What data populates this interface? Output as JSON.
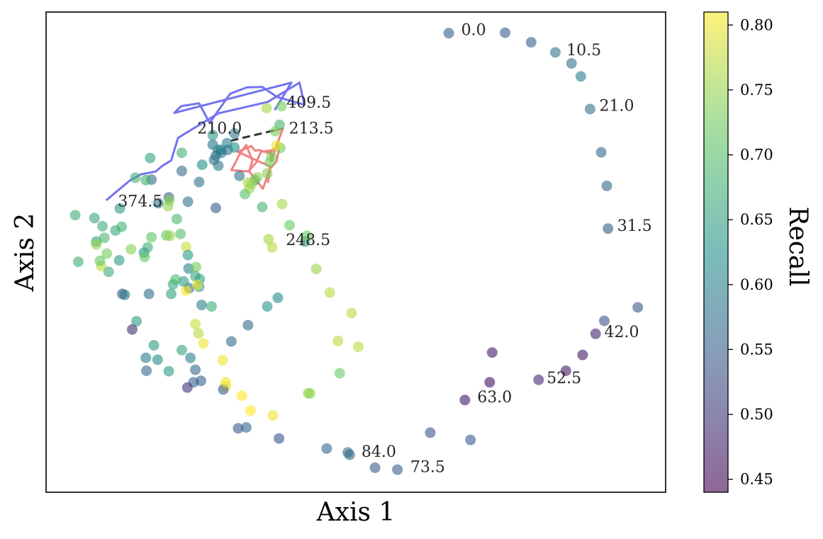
{
  "chart_data": {
    "type": "scatter",
    "xlabel": "Axis 1",
    "ylabel": "Axis 2",
    "xlim": [
      0,
      100
    ],
    "ylim": [
      0,
      100
    ],
    "colorbar": {
      "label": "Recall",
      "min": 0.44,
      "max": 0.81,
      "ticks": [
        0.45,
        0.5,
        0.55,
        0.6,
        0.65,
        0.7,
        0.75,
        0.8
      ],
      "tick_labels": [
        "0.45",
        "0.50",
        "0.55",
        "0.60",
        "0.65",
        "0.70",
        "0.75",
        "0.80"
      ]
    },
    "points": [
      {
        "x": 65.0,
        "y": 95.6,
        "v": 0.55
      },
      {
        "x": 74.1,
        "y": 95.7,
        "v": 0.55
      },
      {
        "x": 78.3,
        "y": 93.7,
        "v": 0.55
      },
      {
        "x": 82.2,
        "y": 91.6,
        "v": 0.58
      },
      {
        "x": 84.8,
        "y": 89.3,
        "v": 0.58
      },
      {
        "x": 86.3,
        "y": 86.6,
        "v": 0.59
      },
      {
        "x": 87.8,
        "y": 79.8,
        "v": 0.58
      },
      {
        "x": 89.6,
        "y": 70.8,
        "v": 0.56
      },
      {
        "x": 90.5,
        "y": 63.8,
        "v": 0.56
      },
      {
        "x": 90.7,
        "y": 54.9,
        "v": 0.55
      },
      {
        "x": 95.5,
        "y": 38.5,
        "v": 0.54
      },
      {
        "x": 90.1,
        "y": 35.7,
        "v": 0.53
      },
      {
        "x": 88.7,
        "y": 33.0,
        "v": 0.48
      },
      {
        "x": 86.6,
        "y": 28.6,
        "v": 0.47
      },
      {
        "x": 83.9,
        "y": 25.3,
        "v": 0.47
      },
      {
        "x": 79.5,
        "y": 23.4,
        "v": 0.48
      },
      {
        "x": 72.0,
        "y": 29.1,
        "v": 0.47
      },
      {
        "x": 71.6,
        "y": 22.9,
        "v": 0.46
      },
      {
        "x": 67.6,
        "y": 19.2,
        "v": 0.47
      },
      {
        "x": 68.5,
        "y": 10.9,
        "v": 0.54
      },
      {
        "x": 62.0,
        "y": 12.4,
        "v": 0.54
      },
      {
        "x": 56.7,
        "y": 4.7,
        "v": 0.55
      },
      {
        "x": 53.1,
        "y": 5.1,
        "v": 0.55
      },
      {
        "x": 49.0,
        "y": 7.8,
        "v": 0.56
      },
      {
        "x": 48.7,
        "y": 8.3,
        "v": 0.57
      },
      {
        "x": 45.3,
        "y": 9.1,
        "v": 0.56
      },
      {
        "x": 37.6,
        "y": 11.2,
        "v": 0.54
      },
      {
        "x": 32.3,
        "y": 13.5,
        "v": 0.56
      },
      {
        "x": 31.0,
        "y": 13.3,
        "v": 0.55
      },
      {
        "x": 36.6,
        "y": 16.0,
        "v": 0.8
      },
      {
        "x": 33.0,
        "y": 17.0,
        "v": 0.81
      },
      {
        "x": 31.6,
        "y": 20.1,
        "v": 0.81
      },
      {
        "x": 29.0,
        "y": 22.1,
        "v": 0.8
      },
      {
        "x": 28.6,
        "y": 21.4,
        "v": 0.55
      },
      {
        "x": 42.6,
        "y": 20.6,
        "v": 0.74
      },
      {
        "x": 42.3,
        "y": 20.6,
        "v": 0.75
      },
      {
        "x": 47.4,
        "y": 24.8,
        "v": 0.72
      },
      {
        "x": 50.4,
        "y": 30.3,
        "v": 0.77
      },
      {
        "x": 47.1,
        "y": 31.5,
        "v": 0.77
      },
      {
        "x": 49.3,
        "y": 37.3,
        "v": 0.77
      },
      {
        "x": 45.8,
        "y": 41.6,
        "v": 0.77
      },
      {
        "x": 43.6,
        "y": 46.5,
        "v": 0.75
      },
      {
        "x": 41.8,
        "y": 52.2,
        "v": 0.64
      },
      {
        "x": 42.1,
        "y": 53.4,
        "v": 0.72
      },
      {
        "x": 39.3,
        "y": 55.6,
        "v": 0.72
      },
      {
        "x": 35.9,
        "y": 52.7,
        "v": 0.76
      },
      {
        "x": 38.1,
        "y": 60.0,
        "v": 0.76
      },
      {
        "x": 36.5,
        "y": 51.0,
        "v": 0.77
      },
      {
        "x": 35.7,
        "y": 66.4,
        "v": 0.74
      },
      {
        "x": 37.8,
        "y": 71.7,
        "v": 0.73
      },
      {
        "x": 36.4,
        "y": 69.9,
        "v": 0.73
      },
      {
        "x": 37.7,
        "y": 76.5,
        "v": 0.68
      },
      {
        "x": 37.2,
        "y": 72.2,
        "v": 0.8
      },
      {
        "x": 37.0,
        "y": 75.2,
        "v": 0.73
      },
      {
        "x": 38.0,
        "y": 80.4,
        "v": 0.73
      },
      {
        "x": 35.6,
        "y": 80.0,
        "v": 0.76
      },
      {
        "x": 32.1,
        "y": 62.1,
        "v": 0.7
      },
      {
        "x": 34.9,
        "y": 59.4,
        "v": 0.68
      },
      {
        "x": 33.7,
        "y": 65.0,
        "v": 0.64
      },
      {
        "x": 31.2,
        "y": 65.9,
        "v": 0.58
      },
      {
        "x": 34.1,
        "y": 65.6,
        "v": 0.75
      },
      {
        "x": 33.2,
        "y": 64.2,
        "v": 0.75
      },
      {
        "x": 32.6,
        "y": 64.5,
        "v": 0.76
      },
      {
        "x": 32.8,
        "y": 63.2,
        "v": 0.75
      },
      {
        "x": 30.4,
        "y": 74.7,
        "v": 0.59
      },
      {
        "x": 29.2,
        "y": 72.7,
        "v": 0.6
      },
      {
        "x": 28.3,
        "y": 70.7,
        "v": 0.6
      },
      {
        "x": 26.9,
        "y": 72.4,
        "v": 0.58
      },
      {
        "x": 27.7,
        "y": 71.3,
        "v": 0.63
      },
      {
        "x": 29.3,
        "y": 71.3,
        "v": 0.58
      },
      {
        "x": 28.2,
        "y": 71.3,
        "v": 0.59
      },
      {
        "x": 27.4,
        "y": 70.1,
        "v": 0.57
      },
      {
        "x": 26.9,
        "y": 74.4,
        "v": 0.64
      },
      {
        "x": 30.4,
        "y": 71.8,
        "v": 0.62
      },
      {
        "x": 27.1,
        "y": 69.2,
        "v": 0.58
      },
      {
        "x": 25.2,
        "y": 68.2,
        "v": 0.62
      },
      {
        "x": 27.8,
        "y": 68.0,
        "v": 0.59
      },
      {
        "x": 24.7,
        "y": 64.6,
        "v": 0.58
      },
      {
        "x": 27.4,
        "y": 59.2,
        "v": 0.55
      },
      {
        "x": 36.1,
        "y": 68.7,
        "v": 0.73
      },
      {
        "x": 21.9,
        "y": 70.7,
        "v": 0.68
      },
      {
        "x": 16.8,
        "y": 69.6,
        "v": 0.65
      },
      {
        "x": 21.9,
        "y": 66.9,
        "v": 0.57
      },
      {
        "x": 17.0,
        "y": 65.1,
        "v": 0.57
      },
      {
        "x": 19.8,
        "y": 61.4,
        "v": 0.55
      },
      {
        "x": 22.9,
        "y": 60.5,
        "v": 0.58
      },
      {
        "x": 18.1,
        "y": 60.2,
        "v": 0.58
      },
      {
        "x": 21.1,
        "y": 56.9,
        "v": 0.69
      },
      {
        "x": 12.2,
        "y": 55.3,
        "v": 0.68
      },
      {
        "x": 9.1,
        "y": 55.4,
        "v": 0.67
      },
      {
        "x": 11.2,
        "y": 54.5,
        "v": 0.66
      },
      {
        "x": 8.1,
        "y": 52.2,
        "v": 0.65
      },
      {
        "x": 4.7,
        "y": 57.7,
        "v": 0.67
      },
      {
        "x": 7.8,
        "y": 57.1,
        "v": 0.66
      },
      {
        "x": 9.4,
        "y": 53.0,
        "v": 0.69
      },
      {
        "x": 11.9,
        "y": 59.1,
        "v": 0.64
      },
      {
        "x": 14.4,
        "y": 65.5,
        "v": 0.68
      },
      {
        "x": 16.1,
        "y": 65.0,
        "v": 0.68
      },
      {
        "x": 19.7,
        "y": 59.6,
        "v": 0.75
      },
      {
        "x": 19.9,
        "y": 60.8,
        "v": 0.74
      },
      {
        "x": 8.1,
        "y": 51.6,
        "v": 0.75
      },
      {
        "x": 5.2,
        "y": 48.0,
        "v": 0.67
      },
      {
        "x": 9.8,
        "y": 49.7,
        "v": 0.73
      },
      {
        "x": 13.7,
        "y": 50.6,
        "v": 0.74
      },
      {
        "x": 8.9,
        "y": 47.1,
        "v": 0.77
      },
      {
        "x": 8.7,
        "y": 48.2,
        "v": 0.72
      },
      {
        "x": 10.1,
        "y": 45.9,
        "v": 0.67
      },
      {
        "x": 11.8,
        "y": 48.3,
        "v": 0.64
      },
      {
        "x": 15.8,
        "y": 49.9,
        "v": 0.63
      },
      {
        "x": 16.4,
        "y": 51.0,
        "v": 0.67
      },
      {
        "x": 15.9,
        "y": 49.0,
        "v": 0.72
      },
      {
        "x": 17.0,
        "y": 53.1,
        "v": 0.71
      },
      {
        "x": 19.4,
        "y": 53.5,
        "v": 0.72
      },
      {
        "x": 20.0,
        "y": 53.4,
        "v": 0.75
      },
      {
        "x": 21.7,
        "y": 53.8,
        "v": 0.7
      },
      {
        "x": 22.6,
        "y": 51.1,
        "v": 0.78
      },
      {
        "x": 22.9,
        "y": 49.4,
        "v": 0.64
      },
      {
        "x": 23.0,
        "y": 46.6,
        "v": 0.6
      },
      {
        "x": 24.2,
        "y": 46.9,
        "v": 0.73
      },
      {
        "x": 24.1,
        "y": 45.0,
        "v": 0.66
      },
      {
        "x": 24.8,
        "y": 44.4,
        "v": 0.65
      },
      {
        "x": 23.1,
        "y": 42.5,
        "v": 0.57
      },
      {
        "x": 24.7,
        "y": 42.8,
        "v": 0.64
      },
      {
        "x": 24.4,
        "y": 43.2,
        "v": 0.8
      },
      {
        "x": 22.6,
        "y": 42.0,
        "v": 0.81
      },
      {
        "x": 22.2,
        "y": 43.9,
        "v": 0.64
      },
      {
        "x": 20.5,
        "y": 43.3,
        "v": 0.66
      },
      {
        "x": 20.9,
        "y": 44.3,
        "v": 0.69
      },
      {
        "x": 12.3,
        "y": 41.3,
        "v": 0.54
      },
      {
        "x": 12.7,
        "y": 41.1,
        "v": 0.59
      },
      {
        "x": 16.6,
        "y": 41.3,
        "v": 0.57
      },
      {
        "x": 20.2,
        "y": 41.3,
        "v": 0.65
      },
      {
        "x": 25.1,
        "y": 39.0,
        "v": 0.6
      },
      {
        "x": 26.7,
        "y": 38.7,
        "v": 0.67
      },
      {
        "x": 35.7,
        "y": 38.7,
        "v": 0.63
      },
      {
        "x": 37.4,
        "y": 40.5,
        "v": 0.62
      },
      {
        "x": 14.6,
        "y": 35.6,
        "v": 0.64
      },
      {
        "x": 13.9,
        "y": 33.9,
        "v": 0.49
      },
      {
        "x": 24.1,
        "y": 35.0,
        "v": 0.78
      },
      {
        "x": 24.6,
        "y": 33.1,
        "v": 0.77
      },
      {
        "x": 25.4,
        "y": 31.0,
        "v": 0.8
      },
      {
        "x": 29.9,
        "y": 31.4,
        "v": 0.57
      },
      {
        "x": 32.6,
        "y": 34.8,
        "v": 0.57
      },
      {
        "x": 17.4,
        "y": 30.6,
        "v": 0.64
      },
      {
        "x": 16.1,
        "y": 28.0,
        "v": 0.6
      },
      {
        "x": 18.0,
        "y": 27.6,
        "v": 0.62
      },
      {
        "x": 21.9,
        "y": 29.6,
        "v": 0.66
      },
      {
        "x": 23.3,
        "y": 28.0,
        "v": 0.6
      },
      {
        "x": 24.1,
        "y": 25.5,
        "v": 0.56
      },
      {
        "x": 16.2,
        "y": 25.3,
        "v": 0.56
      },
      {
        "x": 19.8,
        "y": 25.2,
        "v": 0.64
      },
      {
        "x": 23.8,
        "y": 22.9,
        "v": 0.56
      },
      {
        "x": 25.0,
        "y": 23.2,
        "v": 0.55
      },
      {
        "x": 22.8,
        "y": 21.8,
        "v": 0.5
      },
      {
        "x": 28.5,
        "y": 27.5,
        "v": 0.8
      },
      {
        "x": 29.0,
        "y": 22.9,
        "v": 0.8
      }
    ],
    "paths": [
      {
        "name": "blue-path",
        "color": "#0000e6",
        "style": "solid",
        "points": [
          [
            9.7,
            60.8
          ],
          [
            13.5,
            64.9
          ],
          [
            15.3,
            66.2
          ],
          [
            17.7,
            66.8
          ],
          [
            18.7,
            67.9
          ],
          [
            20.2,
            69.1
          ],
          [
            21.3,
            73.8
          ],
          [
            27.8,
            78.9
          ],
          [
            35.8,
            81.3
          ],
          [
            40.9,
            85.3
          ],
          [
            41.7,
            80.7
          ],
          [
            37.3,
            82.3
          ],
          [
            34.9,
            84.4
          ],
          [
            32.4,
            84.3
          ],
          [
            29.7,
            83.0
          ],
          [
            26.4,
            76.9
          ],
          [
            24.7,
            81.0
          ],
          [
            21.8,
            80.4
          ],
          [
            20.7,
            79.0
          ],
          [
            39.6,
            85.3
          ],
          [
            36.9,
            79.6
          ]
        ]
      },
      {
        "name": "red-path",
        "color": "#e61a1a",
        "style": "solid",
        "points": [
          [
            36.7,
            75.3
          ],
          [
            38.2,
            75.7
          ],
          [
            36.3,
            68.9
          ],
          [
            36.3,
            71.2
          ],
          [
            34.7,
            70.9
          ],
          [
            33.9,
            68.6
          ],
          [
            32.6,
            66.8
          ],
          [
            29.9,
            67.1
          ],
          [
            30.6,
            68.7
          ],
          [
            31.1,
            70.1
          ],
          [
            32.3,
            72.3
          ],
          [
            33.3,
            69.1
          ],
          [
            32.8,
            66.8
          ],
          [
            35.0,
            63.2
          ],
          [
            36.1,
            67.3
          ],
          [
            37.2,
            68.9
          ],
          [
            37.6,
            71.4
          ],
          [
            37.4,
            72.2
          ],
          [
            36.0,
            70.6
          ],
          [
            34.3,
            71.3
          ],
          [
            33.8,
            71.1
          ],
          [
            33.1,
            72.1
          ],
          [
            30.9,
            70.9
          ],
          [
            36.2,
            67.8
          ],
          [
            35.8,
            64.4
          ]
        ]
      },
      {
        "name": "black-dashed-link",
        "color": "#000000",
        "style": "dashed",
        "points": [
          [
            29.8,
            73.2
          ],
          [
            37.3,
            75.5
          ]
        ]
      }
    ],
    "annotations": [
      {
        "text": "0.0",
        "x": 67.0,
        "y": 95.2
      },
      {
        "text": "10.5",
        "x": 84.0,
        "y": 91.0
      },
      {
        "text": "21.0",
        "x": 89.3,
        "y": 79.4
      },
      {
        "text": "31.5",
        "x": 92.2,
        "y": 54.4
      },
      {
        "text": "42.0",
        "x": 90.1,
        "y": 32.3
      },
      {
        "text": "52.5",
        "x": 80.8,
        "y": 22.7
      },
      {
        "text": "63.0",
        "x": 69.6,
        "y": 18.7
      },
      {
        "text": "73.5",
        "x": 58.8,
        "y": 4.2
      },
      {
        "text": "84.0",
        "x": 50.9,
        "y": 7.4
      },
      {
        "text": "210.0",
        "x": 24.4,
        "y": 74.7
      },
      {
        "text": "213.5",
        "x": 39.2,
        "y": 74.7
      },
      {
        "text": "248.5",
        "x": 38.7,
        "y": 51.5
      },
      {
        "text": "374.5",
        "x": 11.6,
        "y": 59.5
      },
      {
        "text": "409.5",
        "x": 38.8,
        "y": 80.1
      }
    ]
  }
}
